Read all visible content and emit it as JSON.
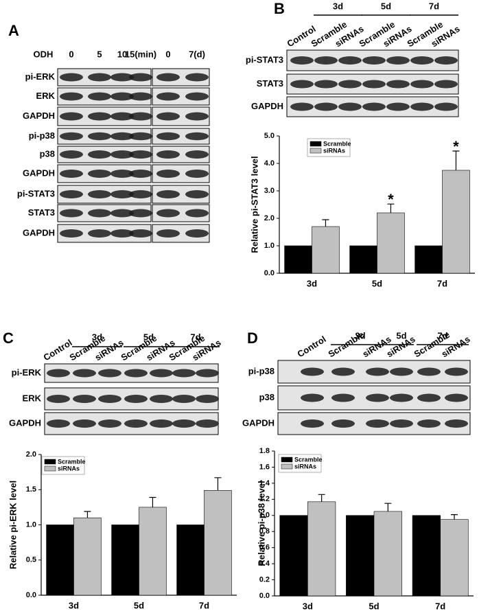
{
  "panel_labels": [
    "A",
    "B",
    "C",
    "D"
  ],
  "blots": [
    {
      "treatment": "ODH",
      "lanes": [
        "0",
        "5",
        "10",
        "15(min)",
        "0",
        "7(d)"
      ],
      "rows": [
        "pi-ERK",
        "ERK",
        "GAPDH",
        "pi-p38",
        "p38",
        "GAPDH",
        "pi-STAT3",
        "STAT3",
        "GAPDH"
      ]
    },
    {
      "groups": [
        "3d",
        "5d",
        "7d"
      ],
      "lanes": [
        "Control",
        "Scramble",
        "siRNAs",
        "Scramble",
        "siRNAs",
        "Scramble",
        "siRNAs"
      ],
      "rows": [
        "pi-STAT3",
        "STAT3",
        "GAPDH"
      ]
    },
    {
      "groups": [
        "3d",
        "5d",
        "7d"
      ],
      "lanes": [
        "Control",
        "Scramble",
        "siRNAs",
        "Scramble",
        "siRNAs",
        "Scramble",
        "siRNAs"
      ],
      "rows": [
        "pi-ERK",
        "ERK",
        "GAPDH"
      ]
    },
    {
      "groups": [
        "3d",
        "5d",
        "7d"
      ],
      "lanes": [
        "Control",
        "Scramble",
        "siRNAs",
        "siRNAs",
        "Scramble",
        "siRNAs"
      ],
      "rows": [
        "pi-p38",
        "p38",
        "GAPDH"
      ]
    }
  ],
  "chart_data": [
    {
      "type": "bar",
      "y_label": "Relative pi-STAT3 level",
      "categories": [
        "3d",
        "5d",
        "7d"
      ],
      "ylim": [
        0,
        5
      ],
      "yticks": [
        {
          "value": 0,
          "label": "0.0"
        },
        {
          "value": 1,
          "label": "1.0"
        },
        {
          "value": 2,
          "label": "2.0"
        },
        {
          "value": 3,
          "label": "3.0"
        },
        {
          "value": 4,
          "label": "4.0"
        },
        {
          "value": 5,
          "label": "5.0"
        }
      ],
      "series": [
        {
          "name": "Scramble",
          "color": "#000000",
          "values": [
            1,
            1,
            1
          ]
        },
        {
          "name": "siRNAs",
          "color": "#c0c0c0",
          "values": [
            1.7,
            2.2,
            3.75
          ],
          "errors": [
            0.25,
            0.32,
            0.7
          ],
          "markers": [
            null,
            "*",
            "*"
          ]
        }
      ]
    },
    {
      "type": "bar",
      "y_label": "Relative pi-ERK level",
      "categories": [
        "3d",
        "5d",
        "7d"
      ],
      "ylim": [
        0,
        2
      ],
      "yticks": [
        {
          "value": 0,
          "label": "0.0"
        },
        0.5,
        {
          "value": 1,
          "label": "1.0"
        },
        1.5,
        {
          "value": 2,
          "label": "2.0"
        }
      ],
      "series": [
        {
          "name": "Scramble",
          "color": "#000000",
          "values": [
            1,
            1,
            1
          ]
        },
        {
          "name": "siRNAs",
          "color": "#c0c0c0",
          "values": [
            1.1,
            1.25,
            1.49
          ],
          "errors": [
            0.09,
            0.14,
            0.18
          ]
        }
      ]
    },
    {
      "type": "bar",
      "y_label": "Relative pi-p38 level",
      "categories": [
        "3d",
        "5d",
        "7d"
      ],
      "ylim": [
        0,
        1.8
      ],
      "yticks": [
        {
          "value": 0,
          "label": "0.0"
        },
        0.2,
        0.4,
        0.6,
        0.8,
        {
          "value": 1,
          "label": "1.0"
        },
        1.2,
        1.4,
        1.6,
        1.8
      ],
      "series": [
        {
          "name": "Scramble",
          "color": "#000000",
          "values": [
            1,
            1,
            1
          ]
        },
        {
          "name": "siRNAs",
          "color": "#c0c0c0",
          "values": [
            1.17,
            1.05,
            0.95
          ],
          "errors": [
            0.09,
            0.1,
            0.06
          ]
        }
      ]
    }
  ]
}
